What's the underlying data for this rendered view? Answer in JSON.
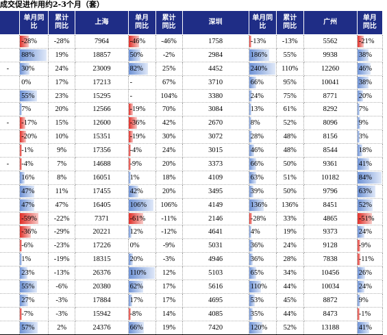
{
  "title": "成交促进作用约2-3个月（套）",
  "headers": [
    {
      "l1": "",
      "l2": ""
    },
    {
      "l1": "单月同",
      "l2": "比"
    },
    {
      "l1": "累计",
      "l2": "同比"
    },
    {
      "l1": "上海",
      "l2": ""
    },
    {
      "l1": "单月",
      "l2": "同比"
    },
    {
      "l1": "累计",
      "l2": "同比"
    },
    {
      "l1": "深圳",
      "l2": ""
    },
    {
      "l1": "单月同",
      "l2": "比"
    },
    {
      "l1": "累计",
      "l2": "同比"
    },
    {
      "l1": "广州",
      "l2": ""
    },
    {
      "l1": "单月",
      "l2": "同比"
    }
  ],
  "rows": [
    {
      "c0": "",
      "sh_m": "-28%",
      "sh_c": "-28%",
      "sh": "7964",
      "sz_m": "-46%",
      "sz_c": "-46%",
      "sz": "1758",
      "gz_m": "-13%",
      "gz_c": "-13%",
      "gz": "5562",
      "gz2": "-21%",
      "b": [
        -0.28,
        -0.46,
        -0.13,
        -0.21
      ]
    },
    {
      "c0": "",
      "sh_m": "88%",
      "sh_c": "19%",
      "sh": "18857",
      "sz_m": "50%",
      "sz_c": "-2%",
      "sz": "2984",
      "gz_m": "186%",
      "gz_c": "55%",
      "gz": "9938",
      "gz2": "38%",
      "b": [
        0.88,
        0.5,
        1.86,
        0.38
      ]
    },
    {
      "c0": "-",
      "sh_m": "30%",
      "sh_c": "24%",
      "sh": "23009",
      "sz_m": "82%",
      "sz_c": "25%",
      "sz": "4452",
      "gz_m": "240%",
      "gz_c": "110%",
      "gz": "12260",
      "gz2": "46%",
      "b": [
        0.3,
        0.82,
        2.4,
        0.46
      ]
    },
    {
      "c0": "",
      "sh_m": "0%",
      "sh_c": "17%",
      "sh": "17213",
      "sz_m": "-",
      "sz_c": "67%",
      "sz": "3710",
      "gz_m": "66%",
      "gz_c": "95%",
      "gz": "10041",
      "gz2": "38%",
      "b": [
        0,
        0,
        0.66,
        0.38
      ]
    },
    {
      "c0": "",
      "sh_m": "55%",
      "sh_c": "23%",
      "sh": "15295",
      "sz_m": "-",
      "sz_c": "104%",
      "sz": "3380",
      "gz_m": "24%",
      "gz_c": "75%",
      "gz": "8771",
      "gz2": "20%",
      "b": [
        0.55,
        0,
        0.24,
        0.2
      ]
    },
    {
      "c0": "",
      "sh_m": "7%",
      "sh_c": "20%",
      "sh": "12566",
      "sz_m": "-19%",
      "sz_c": "70%",
      "sz": "3084",
      "gz_m": "13%",
      "gz_c": "61%",
      "gz": "8292",
      "gz2": "7%",
      "b": [
        0.07,
        -0.19,
        0.13,
        0.07
      ]
    },
    {
      "c0": "-",
      "sh_m": "-17%",
      "sh_c": "15%",
      "sh": "12600",
      "sz_m": "-36%",
      "sz_c": "42%",
      "sz": "2670",
      "gz_m": "8%",
      "gz_c": "52%",
      "gz": "8096",
      "gz2": "9%",
      "b": [
        -0.17,
        -0.36,
        0.08,
        0.09
      ]
    },
    {
      "c0": "",
      "sh_m": "-20%",
      "sh_c": "10%",
      "sh": "15351",
      "sz_m": "-19%",
      "sz_c": "30%",
      "sz": "3072",
      "gz_m": "28%",
      "gz_c": "48%",
      "gz": "8156",
      "gz2": "3%",
      "b": [
        -0.2,
        -0.19,
        0.28,
        0.03
      ]
    },
    {
      "c0": "",
      "sh_m": "-1%",
      "sh_c": "9%",
      "sh": "17356",
      "sz_m": "-4%",
      "sz_c": "24%",
      "sz": "3015",
      "gz_m": "46%",
      "gz_c": "48%",
      "gz": "8544",
      "gz2": "18%",
      "b": [
        -0.01,
        -0.04,
        0.46,
        0.18
      ]
    },
    {
      "c0": "-",
      "sh_m": "-4%",
      "sh_c": "7%",
      "sh": "14688",
      "sz_m": "-9%",
      "sz_c": "20%",
      "sz": "3373",
      "gz_m": "66%",
      "gz_c": "50%",
      "gz": "9361",
      "gz2": "41%",
      "b": [
        -0.04,
        -0.09,
        0.66,
        0.41
      ]
    },
    {
      "c0": "",
      "sh_m": "16%",
      "sh_c": "8%",
      "sh": "16051",
      "sz_m": "1%",
      "sz_c": "18%",
      "sz": "4109",
      "gz_m": "63%",
      "gz_c": "51%",
      "gz": "10182",
      "gz2": "84%",
      "b": [
        0.16,
        0.01,
        0.63,
        0.84
      ]
    },
    {
      "c0": "",
      "sh_m": "47%",
      "sh_c": "11%",
      "sh": "17455",
      "sz_m": "42%",
      "sz_c": "20%",
      "sz": "3495",
      "gz_m": "39%",
      "gz_c": "50%",
      "gz": "9796",
      "gz2": "63%",
      "b": [
        0.47,
        0.42,
        0.39,
        0.63
      ]
    },
    {
      "c0": "",
      "sh_m": "47%",
      "sh_c": "47%",
      "sh": "16405",
      "sz_m": "106%",
      "sz_c": "106%",
      "sz": "4149",
      "gz_m": "136%",
      "gz_c": "136%",
      "gz": "8451",
      "gz2": "52%",
      "b": [
        0.47,
        1.06,
        1.36,
        0.52
      ]
    },
    {
      "c0": "",
      "sh_m": "-59%",
      "sh_c": "-22%",
      "sh": "7371",
      "sz_m": "-61%",
      "sz_c": "-11%",
      "sz": "2146",
      "gz_m": "-28%",
      "gz_c": "33%",
      "gz": "4865",
      "gz2": "-51%",
      "b": [
        -0.59,
        -0.61,
        -0.28,
        -0.51
      ]
    },
    {
      "c0": "",
      "sh_m": "-36%",
      "sh_c": "-29%",
      "sh": "20221",
      "sz_m": "12%",
      "sz_c": "-12%",
      "sz": "4641",
      "gz_m": "4%",
      "gz_c": "19%",
      "gz": "9373",
      "gz2": "24%",
      "b": [
        -0.36,
        0.12,
        0.04,
        0.24
      ]
    },
    {
      "c0": "",
      "sh_m": "-6%",
      "sh_c": "-23%",
      "sh": "17226",
      "sz_m": "0%",
      "sz_c": "-9%",
      "sz": "5031",
      "gz_m": "36%",
      "gz_c": "24%",
      "gz": "9128",
      "gz2": "-9%",
      "b": [
        -0.06,
        0,
        0.36,
        -0.09
      ]
    },
    {
      "c0": "",
      "sh_m": "1%",
      "sh_c": "-19%",
      "sh": "18315",
      "sz_m": "20%",
      "sz_c": "-3%",
      "sz": "4946",
      "gz_m": "36%",
      "gz_c": "28%",
      "gz": "7838",
      "gz2": "-11%",
      "b": [
        0.01,
        0.2,
        0.36,
        -0.11
      ]
    },
    {
      "c0": "",
      "sh_m": "23%",
      "sh_c": "-13%",
      "sh": "26376",
      "sz_m": "110%",
      "sz_c": "12%",
      "sz": "5103",
      "gz_m": "65%",
      "gz_c": "34%",
      "gz": "10456",
      "gz2": "26%",
      "b": [
        0.23,
        1.1,
        0.65,
        0.26
      ]
    },
    {
      "c0": "",
      "sh_m": "55%",
      "sh_c": "-6%",
      "sh": "20380",
      "sz_m": "62%",
      "sz_c": "17%",
      "sz": "5616",
      "gz_m": "110%",
      "gz_c": "44%",
      "gz": "10034",
      "gz2": "24%",
      "b": [
        0.55,
        0.62,
        1.1,
        0.24
      ]
    },
    {
      "c0": "",
      "sh_m": "27%",
      "sh_c": "-3%",
      "sh": "17884",
      "sz_m": "17%",
      "sz_c": "17%",
      "sz": "4695",
      "gz_m": "53%",
      "gz_c": "45%",
      "gz": "8872",
      "gz2": "9%",
      "b": [
        0.27,
        0.17,
        0.53,
        0.09
      ]
    },
    {
      "c0": "",
      "sh_m": "-7%",
      "sh_c": "-3%",
      "sh": "15942",
      "sz_m": "-8%",
      "sz_c": "14%",
      "sz": "4085",
      "gz_m": "35%",
      "gz_c": "44%",
      "gz": "8473",
      "gz2": "-1%",
      "b": [
        -0.07,
        -0.08,
        0.35,
        -0.01
      ]
    },
    {
      "c0": "",
      "sh_m": "57%",
      "sh_c": "2%",
      "sh": "24376",
      "sz_m": "66%",
      "sz_c": "19%",
      "sz": "7420",
      "gz_m": "120%",
      "gz_c": "52%",
      "gz": "13188",
      "gz2": "41%",
      "b": [
        0.57,
        0.66,
        1.2,
        0.41
      ]
    }
  ]
}
